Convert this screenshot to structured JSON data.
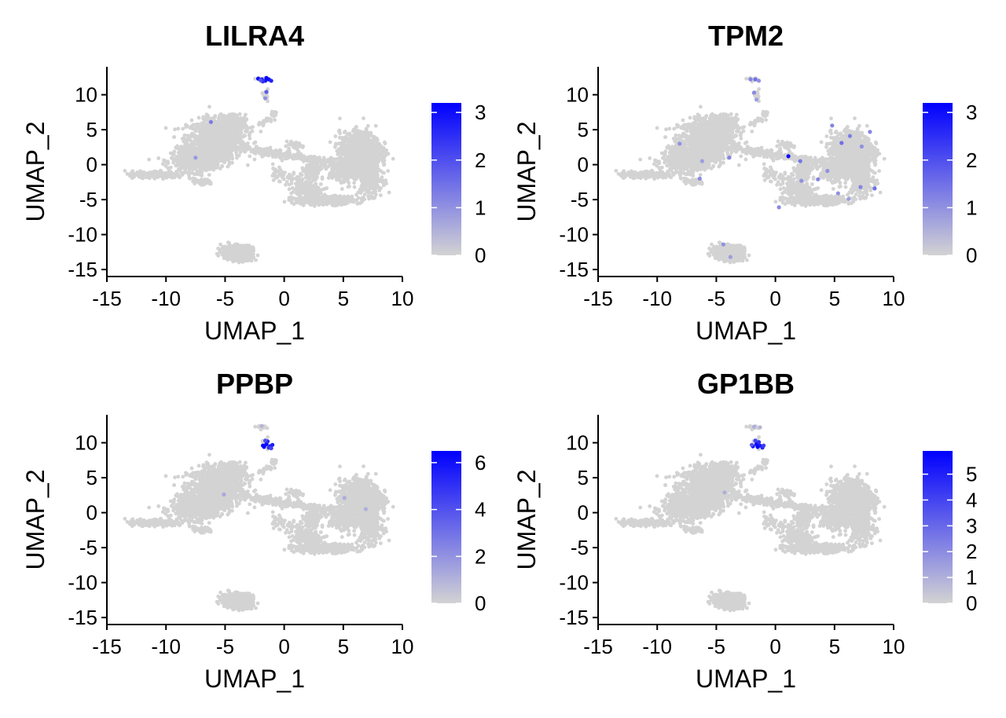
{
  "colors": {
    "low": "#d3d3d3",
    "high": "#0000ff",
    "axis": "#000000",
    "background": "#ffffff"
  },
  "chart_data": [
    {
      "type": "scatter",
      "title": "LILRA4",
      "xlabel": "UMAP_1",
      "ylabel": "UMAP_2",
      "xlim": [
        -15,
        10
      ],
      "ylim": [
        -16,
        14
      ],
      "xticks": [
        "-15",
        "-10",
        "-5",
        "0",
        "5",
        "10"
      ],
      "yticks": [
        "-15",
        "-10",
        "-5",
        "0",
        "5",
        "10"
      ],
      "legend": {
        "position": "right",
        "type": "gradient",
        "min": 0,
        "max": 3.2,
        "ticks": [
          "0",
          "1",
          "2",
          "3"
        ]
      },
      "grid": false,
      "expressed_points": [
        [
          -2.2,
          12.3,
          3.0
        ],
        [
          -1.9,
          12.2,
          3.1
        ],
        [
          -1.6,
          12.0,
          2.9
        ],
        [
          -1.3,
          12.2,
          3.0
        ],
        [
          -1.1,
          12.0,
          2.7
        ],
        [
          -1.8,
          11.9,
          2.4
        ],
        [
          -1.5,
          12.4,
          3.1
        ],
        [
          -2.0,
          12.1,
          2.0
        ],
        [
          -1.5,
          10.4,
          1.8
        ],
        [
          -1.6,
          9.5,
          1.0
        ],
        [
          -6.2,
          6.1,
          1.3
        ],
        [
          -7.5,
          1.0,
          0.9
        ]
      ]
    },
    {
      "type": "scatter",
      "title": "TPM2",
      "xlabel": "UMAP_1",
      "ylabel": "UMAP_2",
      "xlim": [
        -15,
        10
      ],
      "ylim": [
        -16,
        14
      ],
      "xticks": [
        "-15",
        "-10",
        "-5",
        "0",
        "5",
        "10"
      ],
      "yticks": [
        "-15",
        "-10",
        "-5",
        "0",
        "5",
        "10"
      ],
      "legend": {
        "position": "right",
        "type": "gradient",
        "min": 0,
        "max": 3.2,
        "ticks": [
          "0",
          "1",
          "2",
          "3"
        ]
      },
      "grid": false,
      "expressed_points": [
        [
          -2.1,
          12.2,
          1.2
        ],
        [
          -1.7,
          12.2,
          1.5
        ],
        [
          -1.4,
          12.0,
          1.0
        ],
        [
          -1.8,
          10.3,
          1.1
        ],
        [
          -1.6,
          9.3,
          0.8
        ],
        [
          -8.1,
          3.0,
          1.0
        ],
        [
          -6.2,
          0.5,
          0.8
        ],
        [
          -3.9,
          1.0,
          1.2
        ],
        [
          1.1,
          1.2,
          3.0
        ],
        [
          2.1,
          0.5,
          1.4
        ],
        [
          4.8,
          5.6,
          1.2
        ],
        [
          5.6,
          3.1,
          1.5
        ],
        [
          6.3,
          4.1,
          1.3
        ],
        [
          7.3,
          2.6,
          1.0
        ],
        [
          8.0,
          4.7,
          1.2
        ],
        [
          4.4,
          -0.9,
          1.0
        ],
        [
          3.6,
          -2.1,
          1.2
        ],
        [
          5.3,
          -4.1,
          1.0
        ],
        [
          7.2,
          -3.2,
          1.2
        ],
        [
          8.4,
          -3.4,
          1.5
        ],
        [
          6.2,
          -4.9,
          0.8
        ],
        [
          2.2,
          -2.3,
          1.0
        ],
        [
          0.3,
          -6.1,
          1.1
        ],
        [
          -6.4,
          -2.0,
          1.1
        ],
        [
          -4.4,
          -11.4,
          1.0
        ],
        [
          -3.8,
          -13.2,
          0.8
        ]
      ]
    },
    {
      "type": "scatter",
      "title": "PPBP",
      "xlabel": "UMAP_1",
      "ylabel": "UMAP_2",
      "xlim": [
        -15,
        10
      ],
      "ylim": [
        -16,
        14
      ],
      "xticks": [
        "-15",
        "-10",
        "-5",
        "0",
        "5",
        "10"
      ],
      "yticks": [
        "-15",
        "-10",
        "-5",
        "0",
        "5",
        "10"
      ],
      "legend": {
        "position": "right",
        "type": "gradient",
        "min": 0,
        "max": 6.5,
        "ticks": [
          "0",
          "2",
          "4",
          "6"
        ]
      },
      "grid": false,
      "expressed_points": [
        [
          -1.8,
          9.6,
          6.0
        ],
        [
          -1.5,
          9.8,
          6.2
        ],
        [
          -1.2,
          9.5,
          5.8
        ],
        [
          -1.7,
          9.4,
          6.3
        ],
        [
          -1.4,
          10.2,
          5.2
        ],
        [
          -1.0,
          9.7,
          5.6
        ],
        [
          -1.6,
          10.3,
          4.0
        ],
        [
          -1.3,
          9.3,
          5.0
        ],
        [
          -1.1,
          9.2,
          4.4
        ],
        [
          -1.9,
          12.4,
          1.0
        ],
        [
          -5.1,
          2.6,
          1.3
        ],
        [
          5.1,
          2.1,
          1.2
        ],
        [
          6.9,
          0.5,
          1.1
        ]
      ]
    },
    {
      "type": "scatter",
      "title": "GP1BB",
      "xlabel": "UMAP_1",
      "ylabel": "UMAP_2",
      "xlim": [
        -15,
        10
      ],
      "ylim": [
        -16,
        14
      ],
      "xticks": [
        "-15",
        "-10",
        "-5",
        "0",
        "5",
        "10"
      ],
      "yticks": [
        "-15",
        "-10",
        "-5",
        "0",
        "5",
        "10"
      ],
      "legend": {
        "position": "right",
        "type": "gradient",
        "min": 0,
        "max": 5.9,
        "ticks": [
          "0",
          "1",
          "2",
          "3",
          "4",
          "5"
        ]
      },
      "grid": false,
      "expressed_points": [
        [
          -1.9,
          9.5,
          5.4
        ],
        [
          -1.6,
          9.8,
          5.6
        ],
        [
          -1.3,
          9.6,
          5.2
        ],
        [
          -1.5,
          9.4,
          5.7
        ],
        [
          -1.1,
          9.3,
          4.8
        ],
        [
          -1.7,
          10.3,
          4.0
        ],
        [
          -1.4,
          10.1,
          4.6
        ],
        [
          -2.0,
          9.7,
          3.5
        ],
        [
          -1.0,
          9.6,
          4.2
        ],
        [
          -1.8,
          12.3,
          1.0
        ],
        [
          -1.3,
          12.2,
          0.8
        ],
        [
          -4.3,
          2.9,
          1.0
        ]
      ]
    }
  ]
}
